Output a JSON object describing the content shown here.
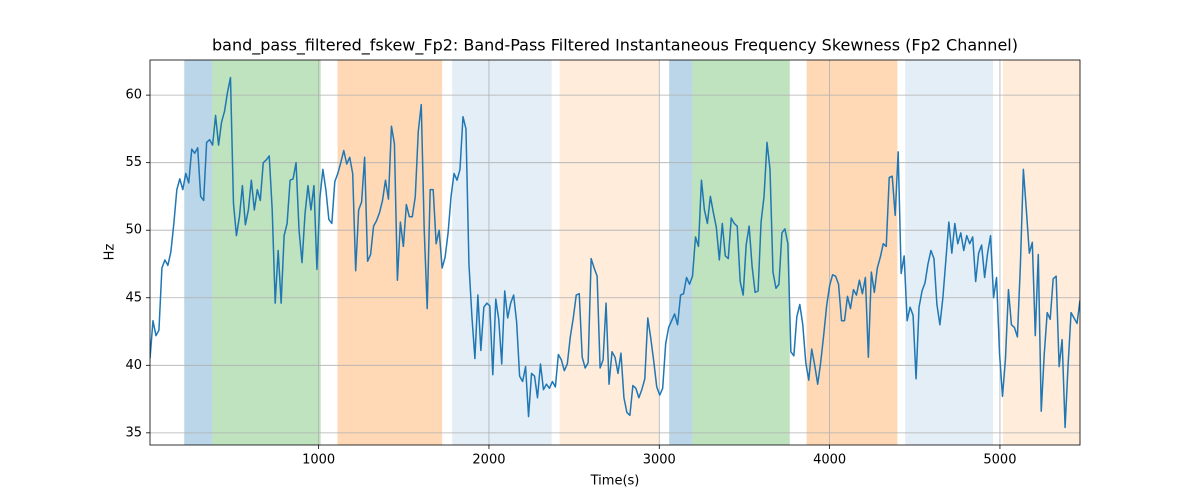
{
  "chart_data": {
    "type": "line",
    "title": "band_pass_filtered_fskew_Fp2: Band-Pass Filtered Instantaneous Frequency Skewness (Fp2 Channel)",
    "xlabel": "Time(s)",
    "ylabel": "Hz",
    "xlim": [
      10,
      5470
    ],
    "ylim": [
      34.1,
      62.6
    ],
    "xticks": [
      1000,
      2000,
      3000,
      4000,
      5000
    ],
    "yticks": [
      35,
      40,
      45,
      50,
      55,
      60
    ],
    "grid": true,
    "spans": [
      {
        "x0": 211,
        "x1": 374,
        "color": "#1f77b4",
        "alpha": 0.3
      },
      {
        "x0": 374,
        "x1": 1012,
        "color": "#2ca02c",
        "alpha": 0.3
      },
      {
        "x0": 1111,
        "x1": 1725,
        "color": "#ff7f0e",
        "alpha": 0.3
      },
      {
        "x0": 1784,
        "x1": 2368,
        "color": "#1f77b4",
        "alpha": 0.12
      },
      {
        "x0": 2415,
        "x1": 3000,
        "color": "#ff7f0e",
        "alpha": 0.15
      },
      {
        "x0": 3058,
        "x1": 3193,
        "color": "#1f77b4",
        "alpha": 0.3
      },
      {
        "x0": 3193,
        "x1": 3766,
        "color": "#2ca02c",
        "alpha": 0.3
      },
      {
        "x0": 3865,
        "x1": 4398,
        "color": "#ff7f0e",
        "alpha": 0.3
      },
      {
        "x0": 4444,
        "x1": 4959,
        "color": "#1f77b4",
        "alpha": 0.12
      },
      {
        "x0": 5018,
        "x1": 5470,
        "color": "#ff7f0e",
        "alpha": 0.15
      }
    ],
    "x": [
      10,
      27.5,
      45,
      62.5,
      80,
      97.5,
      115,
      132.5,
      150,
      167.5,
      185,
      202.5,
      220,
      237.5,
      255,
      272.5,
      290,
      307.5,
      325,
      342.5,
      360,
      377.5,
      395,
      412.5,
      430,
      447.5,
      465,
      482.5,
      500,
      517.5,
      535,
      552.5,
      570,
      587.5,
      605,
      622.5,
      640,
      657.5,
      675,
      692.5,
      710,
      727.5,
      745,
      762.5,
      780,
      797.5,
      815,
      832.5,
      850,
      867.5,
      885,
      902.5,
      920,
      937.5,
      955,
      972.5,
      990,
      1007.5,
      1025,
      1042.5,
      1060,
      1077.5,
      1095,
      1112.5,
      1130,
      1147.5,
      1165,
      1182.5,
      1200,
      1217.5,
      1235,
      1252.5,
      1270,
      1287.5,
      1305,
      1322.5,
      1340,
      1357.5,
      1375,
      1392.5,
      1410,
      1427.5,
      1445,
      1462.5,
      1480,
      1497.5,
      1515,
      1532.5,
      1550,
      1567.5,
      1585,
      1602.5,
      1620,
      1637.5,
      1655,
      1672.5,
      1690,
      1707.5,
      1725,
      1742.5,
      1760,
      1777.5,
      1795,
      1812.5,
      1830,
      1847.5,
      1865,
      1882.5,
      1900,
      1917.5,
      1935,
      1952.5,
      1970,
      1987.5,
      2005,
      2022.5,
      2040,
      2057.5,
      2075,
      2092.5,
      2110,
      2127.5,
      2145,
      2162.5,
      2180,
      2197.5,
      2215,
      2232.5,
      2250,
      2267.5,
      2285,
      2302.5,
      2320,
      2337.5,
      2355,
      2372.5,
      2390,
      2407.5,
      2425,
      2442.5,
      2460,
      2477.5,
      2495,
      2512.5,
      2530,
      2547.5,
      2565,
      2582.5,
      2600,
      2617.5,
      2635,
      2652.5,
      2670,
      2687.5,
      2705,
      2722.5,
      2740,
      2757.5,
      2775,
      2792.5,
      2810,
      2827.5,
      2845,
      2862.5,
      2880,
      2897.5,
      2915,
      2932.5,
      2950,
      2967.5,
      2985,
      3002.5,
      3020,
      3037.5,
      3055,
      3072.5,
      3090,
      3107.5,
      3125,
      3142.5,
      3160,
      3177.5,
      3195,
      3212.5,
      3230,
      3247.5,
      3265,
      3282.5,
      3300,
      3317.5,
      3335,
      3352.5,
      3370,
      3387.5,
      3405,
      3422.5,
      3440,
      3457.5,
      3475,
      3492.5,
      3510,
      3527.5,
      3545,
      3562.5,
      3580,
      3597.5,
      3615,
      3632.5,
      3650,
      3667.5,
      3685,
      3702.5,
      3720,
      3737.5,
      3755,
      3772.5,
      3790,
      3807.5,
      3825,
      3842.5,
      3860,
      3877.5,
      3895,
      3912.5,
      3930,
      3947.5,
      3965,
      3982.5,
      4000,
      4017.5,
      4035,
      4052.5,
      4070,
      4087.5,
      4105,
      4122.5,
      4140,
      4157.5,
      4175,
      4192.5,
      4210,
      4227.5,
      4245,
      4262.5,
      4280,
      4297.5,
      4315,
      4332.5,
      4350,
      4367.5,
      4385,
      4402.5,
      4420,
      4437.5,
      4455,
      4472.5,
      4490,
      4507.5,
      4525,
      4542.5,
      4560,
      4577.5,
      4595,
      4612.5,
      4630,
      4647.5,
      4665,
      4682.5,
      4700,
      4717.5,
      4735,
      4752.5,
      4770,
      4787.5,
      4805,
      4822.5,
      4840,
      4857.5,
      4875,
      4892.5,
      4910,
      4927.5,
      4945,
      4962.5,
      4980,
      4997.5,
      5015,
      5032.5,
      5050,
      5067.5,
      5085,
      5102.5,
      5120,
      5137.5,
      5155,
      5172.5,
      5190,
      5207.5,
      5225,
      5242.5,
      5260,
      5277.5,
      5295,
      5312.5,
      5330,
      5347.5,
      5365,
      5382.5,
      5400,
      5417.5,
      5435,
      5452.5,
      5470
    ],
    "series": [
      {
        "color": "#1f77b4",
        "values": [
          40.5,
          43.3,
          42.2,
          42.6,
          47.2,
          47.8,
          47.4,
          48.4,
          50.5,
          53,
          53.8,
          53,
          54.2,
          53.5,
          56,
          55.7,
          56.1,
          52.5,
          52.2,
          56.5,
          56.7,
          56.3,
          58.5,
          56.3,
          58,
          58.8,
          60.2,
          61.3,
          52,
          49.6,
          51,
          53.3,
          50.4,
          51.5,
          53.7,
          51.5,
          53,
          52.2,
          55,
          55.2,
          55.5,
          51.5,
          44.6,
          48.5,
          44.6,
          49.6,
          50.5,
          53.7,
          53.8,
          55,
          50,
          47.6,
          51.2,
          53.3,
          51.5,
          53.3,
          47.1,
          52.4,
          54.5,
          53,
          50.8,
          50.5,
          53.6,
          54.2,
          55,
          55.9,
          54.9,
          55.4,
          54.2,
          47,
          51.5,
          52.1,
          55.4,
          47.7,
          48.2,
          50.3,
          50.7,
          51.3,
          52.2,
          53.7,
          52.3,
          57.7,
          56.4,
          46.3,
          50.6,
          48.8,
          51.9,
          51,
          51,
          52.5,
          57.3,
          59.3,
          50,
          44.2,
          53,
          53,
          49,
          50,
          47.2,
          48,
          49.8,
          52.5,
          54.2,
          53.7,
          54.5,
          58.4,
          57.5,
          47.5,
          43.6,
          40.5,
          45.2,
          41.1,
          44.3,
          44.6,
          44.4,
          39.3,
          44.9,
          43.4,
          40.1,
          45.5,
          43.5,
          44.6,
          45.2,
          43.2,
          39.2,
          38.8,
          39.9,
          36.2,
          39.4,
          39.2,
          37.6,
          40.1,
          38.2,
          38.6,
          38.3,
          38.8,
          38.4,
          40.8,
          40.4,
          39.6,
          40.1,
          42.1,
          43.5,
          45.2,
          45.3,
          40.6,
          39.8,
          40.2,
          47.9,
          47.2,
          46.6,
          39.8,
          40.4,
          44.6,
          38.6,
          41,
          40.6,
          39.4,
          40.9,
          37.6,
          36.5,
          36.3,
          38.5,
          38.3,
          37.6,
          38.2,
          39,
          43.5,
          42,
          40.3,
          38.4,
          37.8,
          38.3,
          41.6,
          42.8,
          43.3,
          43.8,
          43,
          45.2,
          45.3,
          46.5,
          46,
          46.6,
          49.5,
          48.8,
          53.7,
          51.5,
          50.5,
          52.5,
          51.3,
          50.2,
          47.8,
          50.5,
          48.1,
          47.9,
          50.9,
          50.5,
          50.3,
          46.2,
          45.2,
          48.9,
          50.3,
          47.3,
          45.4,
          45.5,
          50.6,
          52.5,
          56.5,
          54.5,
          46.9,
          45.7,
          46,
          49.8,
          50.1,
          49,
          41,
          40.7,
          43.6,
          44.5,
          43,
          40.2,
          38.9,
          41.2,
          40,
          38.6,
          40.2,
          42.2,
          44.4,
          45.9,
          46.7,
          46.6,
          46,
          43.3,
          43.3,
          45.1,
          44.2,
          45.6,
          45.2,
          46.3,
          45.3,
          46.5,
          40.6,
          46.9,
          45.4,
          47.2,
          48,
          49,
          48.8,
          53.9,
          54,
          51.1,
          55.8,
          46.8,
          48.1,
          43.3,
          44.3,
          43.7,
          39,
          44.3,
          45.5,
          46.1,
          47.5,
          48.5,
          47.9,
          44.5,
          43,
          45,
          47.8,
          50.6,
          48.3,
          50.5,
          49,
          49.8,
          48.5,
          49.6,
          49,
          49.5,
          46.2,
          48.3,
          48.9,
          46.5,
          48.3,
          49.6,
          45,
          46.5,
          40.9,
          37.7,
          40.5,
          45.6,
          43,
          42.8,
          42.1,
          47.4,
          54.5,
          51.5,
          48.3,
          49.1,
          42.2,
          48.2,
          36.6,
          40.8,
          43.9,
          43.4,
          46.4,
          46.6,
          39.9,
          41.9,
          35.4,
          40,
          43.9,
          43.5,
          43.1,
          44.8
        ]
      }
    ]
  }
}
